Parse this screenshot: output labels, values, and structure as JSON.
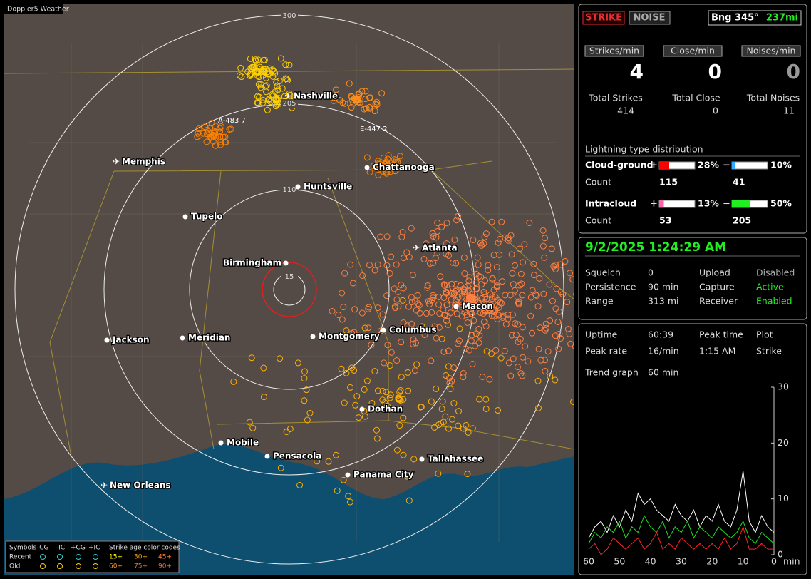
{
  "map": {
    "title": "Doppler5 Weather",
    "ring_labels": [
      "300",
      "205",
      "110",
      "15"
    ],
    "cities": [
      "Nashville",
      "Memphis",
      "Chattanooga",
      "Huntsville",
      "Tupelo",
      "Atlanta",
      "Birmingham",
      "Macon",
      "Jackson",
      "Meridian",
      "Montgomery",
      "Columbus",
      "Dothan",
      "Mobile",
      "Pensacola",
      "Tallahassee",
      "Panama City",
      "New Orleans"
    ],
    "annotations": [
      "A-483 7",
      "E-447 2"
    ],
    "legend": {
      "symbols_label": "Symbols",
      "symbols": [
        "-CG",
        "-IC",
        "+CG",
        "+IC"
      ],
      "age_label": "Strike age color codes",
      "rows": [
        {
          "name": "Recent",
          "ages": [
            "15+",
            "30+",
            "45+"
          ]
        },
        {
          "name": "Old",
          "ages": [
            "60+",
            "75+",
            "90+"
          ]
        }
      ]
    }
  },
  "status": {
    "buttons": [
      "STRIKE",
      "NOISE"
    ],
    "bearing": "Bng 345°",
    "distance": "237mi",
    "rates": [
      {
        "label": "Strikes/min",
        "value": 4
      },
      {
        "label": "Close/min",
        "value": 0
      },
      {
        "label": "Noises/min",
        "value": 0
      }
    ],
    "totals": [
      {
        "label": "Total Strikes",
        "value": 414
      },
      {
        "label": "Total Close",
        "value": 0
      },
      {
        "label": "Total Noises",
        "value": 11
      }
    ],
    "distribution": {
      "title": "Lightning type distribution",
      "rows": [
        {
          "name": "Cloud-ground",
          "pos": {
            "value": 28,
            "label": "28%"
          },
          "neg": {
            "value": 10,
            "label": "10%"
          },
          "pos_color": "#ff0000",
          "neg_color": "#33aaff",
          "count_label": "Count",
          "pos_count": 115,
          "neg_count": 41
        },
        {
          "name": "Intracloud",
          "pos": {
            "value": 13,
            "label": "13%"
          },
          "neg": {
            "value": 50,
            "label": "50%"
          },
          "pos_color": "#ff66aa",
          "neg_color": "#22ee22",
          "count_label": "Count",
          "pos_count": 53,
          "neg_count": 205
        }
      ]
    }
  },
  "settings": {
    "datetime": "9/2/2025 1:24:29 AM",
    "items": [
      {
        "label": "Squelch",
        "value": "0",
        "color": "#dddddd"
      },
      {
        "label": "Upload",
        "value": "Disabled",
        "color": "#aaaaaa"
      },
      {
        "label": "Persistence",
        "value": "90 min",
        "color": "#dddddd"
      },
      {
        "label": "Capture",
        "value": "Active",
        "color": "#22ee22"
      },
      {
        "label": "Range",
        "value": "313 mi",
        "color": "#dddddd"
      },
      {
        "label": "Receiver",
        "value": "Enabled",
        "color": "#22ee22"
      }
    ]
  },
  "stats": {
    "items": [
      {
        "label": "Uptime",
        "value": "60:39"
      },
      {
        "label": "Peak time",
        "value": "1:15 AM"
      },
      {
        "label": "Plot",
        "value": "Strike"
      },
      {
        "label": "Peak rate",
        "value": "16/min"
      }
    ],
    "trend_label": "Trend graph",
    "trend_window": "60 min"
  },
  "trend": {
    "type": "line",
    "ylim": [
      0,
      30
    ],
    "yticks": [
      0,
      10,
      20,
      30
    ],
    "xlim": [
      60,
      0
    ],
    "xticks": [
      60,
      50,
      40,
      30,
      20,
      10,
      0
    ],
    "x_unit": "min",
    "x": [
      60,
      58,
      56,
      54,
      52,
      50,
      48,
      46,
      44,
      42,
      40,
      38,
      36,
      34,
      32,
      30,
      28,
      26,
      24,
      22,
      20,
      18,
      16,
      14,
      12,
      10,
      8,
      6,
      4,
      2,
      0
    ],
    "series": [
      {
        "color": "#ffffff",
        "values": [
          3,
          5,
          6,
          4,
          7,
          5,
          8,
          6,
          11,
          9,
          10,
          8,
          7,
          6,
          9,
          7,
          6,
          8,
          5,
          7,
          6,
          9,
          6,
          5,
          8,
          15,
          6,
          4,
          7,
          5,
          4
        ]
      },
      {
        "color": "#22dd22",
        "values": [
          2,
          4,
          3,
          5,
          4,
          6,
          3,
          5,
          4,
          7,
          5,
          4,
          6,
          3,
          5,
          4,
          6,
          3,
          5,
          4,
          3,
          5,
          4,
          3,
          4,
          6,
          3,
          2,
          4,
          3,
          2
        ]
      },
      {
        "color": "#ff2222",
        "values": [
          1,
          2,
          0,
          1,
          3,
          2,
          1,
          2,
          3,
          1,
          2,
          4,
          1,
          2,
          1,
          3,
          2,
          1,
          2,
          1,
          2,
          1,
          3,
          1,
          2,
          5,
          1,
          1,
          2,
          1,
          1
        ]
      }
    ]
  }
}
